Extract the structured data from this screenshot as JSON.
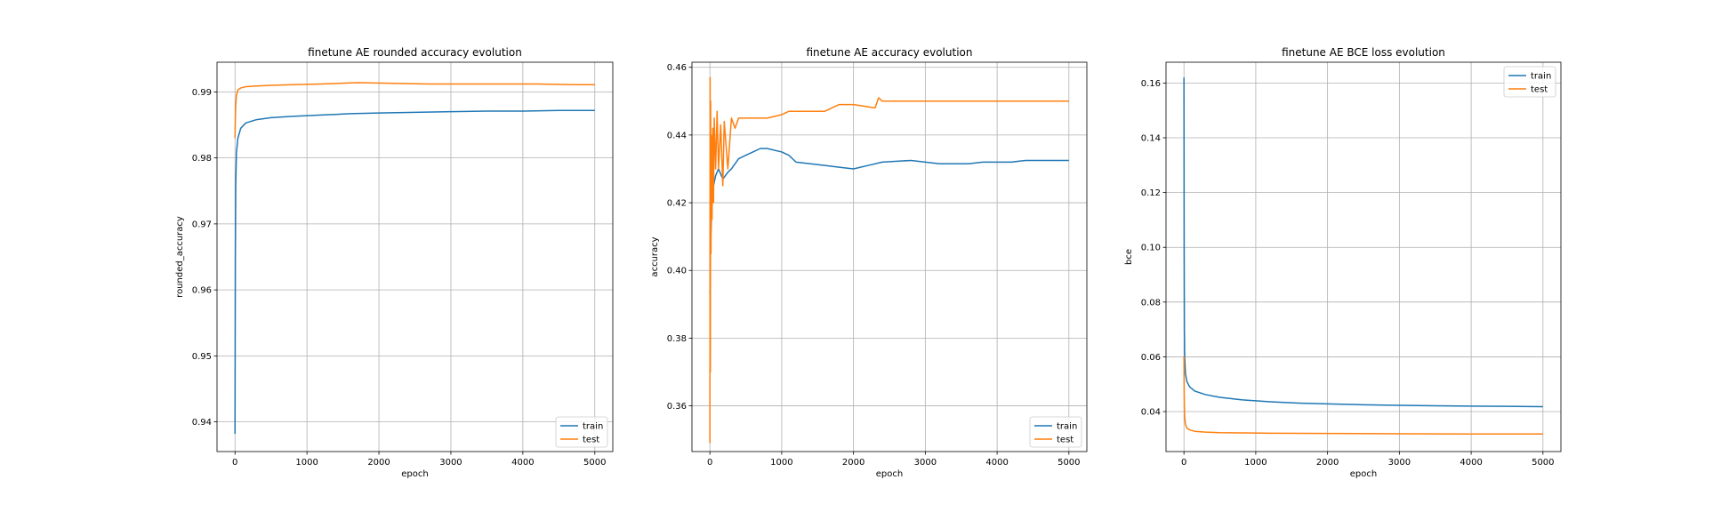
{
  "chart_data": [
    {
      "type": "line",
      "title": "finetune AE rounded accuracy evolution",
      "xlabel": "epoch",
      "ylabel": "rounded_accuracy",
      "xlim": [
        -250,
        5250
      ],
      "ylim": [
        0.9355,
        0.9945
      ],
      "xticks": [
        0,
        1000,
        2000,
        3000,
        4000,
        5000
      ],
      "yticks": [
        0.94,
        0.95,
        0.96,
        0.97,
        0.98,
        0.99
      ],
      "ytick_labels": [
        "0.94",
        "0.95",
        "0.96",
        "0.97",
        "0.98",
        "0.99"
      ],
      "grid": true,
      "legend": "lower-right",
      "series": [
        {
          "name": "train",
          "color": "#1f77b4",
          "x": [
            0,
            5,
            10,
            20,
            40,
            80,
            150,
            300,
            500,
            800,
            1200,
            1600,
            2000,
            2500,
            3000,
            3500,
            4000,
            4500,
            5000
          ],
          "y": [
            0.9382,
            0.965,
            0.976,
            0.9808,
            0.983,
            0.9845,
            0.9853,
            0.9858,
            0.9861,
            0.9863,
            0.9865,
            0.9867,
            0.9868,
            0.9869,
            0.987,
            0.9871,
            0.9871,
            0.9872,
            0.9872
          ]
        },
        {
          "name": "test",
          "color": "#ff7f0e",
          "x": [
            0,
            5,
            10,
            20,
            40,
            80,
            150,
            300,
            500,
            800,
            1200,
            1700,
            2200,
            2700,
            3200,
            3700,
            4200,
            4700,
            5000
          ],
          "y": [
            0.983,
            0.986,
            0.988,
            0.9895,
            0.9903,
            0.9906,
            0.9908,
            0.9909,
            0.991,
            0.9911,
            0.9912,
            0.9914,
            0.9913,
            0.9912,
            0.9912,
            0.9912,
            0.9912,
            0.9911,
            0.9911
          ]
        }
      ]
    },
    {
      "type": "line",
      "title": "finetune AE accuracy evolution",
      "xlabel": "epoch",
      "ylabel": "accuracy",
      "xlim": [
        -250,
        5250
      ],
      "ylim": [
        0.3465,
        0.4615
      ],
      "xticks": [
        0,
        1000,
        2000,
        3000,
        4000,
        5000
      ],
      "yticks": [
        0.36,
        0.38,
        0.4,
        0.42,
        0.44,
        0.46
      ],
      "ytick_labels": [
        "0.36",
        "0.38",
        "0.40",
        "0.42",
        "0.44",
        "0.46"
      ],
      "grid": true,
      "legend": "lower-right",
      "series": [
        {
          "name": "train",
          "color": "#1f77b4",
          "x": [
            0,
            5,
            10,
            20,
            30,
            50,
            80,
            120,
            180,
            250,
            300,
            400,
            500,
            600,
            700,
            800,
            1000,
            1100,
            1200,
            1400,
            1600,
            1800,
            2000,
            2200,
            2400,
            2800,
            3000,
            3200,
            3600,
            3800,
            4200,
            4400,
            4800,
            5000
          ],
          "y": [
            0.393,
            0.403,
            0.408,
            0.415,
            0.42,
            0.425,
            0.428,
            0.43,
            0.427,
            0.429,
            0.43,
            0.433,
            0.434,
            0.435,
            0.436,
            0.436,
            0.435,
            0.434,
            0.432,
            0.4315,
            0.431,
            0.4305,
            0.43,
            0.431,
            0.432,
            0.4325,
            0.432,
            0.4315,
            0.4315,
            0.432,
            0.432,
            0.4325,
            0.4325,
            0.4325
          ]
        },
        {
          "name": "test",
          "color": "#ff7f0e",
          "x": [
            0,
            3,
            6,
            10,
            15,
            20,
            30,
            40,
            50,
            60,
            80,
            100,
            120,
            150,
            180,
            200,
            250,
            300,
            350,
            400,
            600,
            800,
            1000,
            1100,
            1200,
            1600,
            1800,
            2000,
            2300,
            2350,
            2400,
            3000,
            4000,
            5000
          ],
          "y": [
            0.349,
            0.457,
            0.37,
            0.45,
            0.405,
            0.44,
            0.415,
            0.442,
            0.42,
            0.445,
            0.43,
            0.447,
            0.43,
            0.443,
            0.425,
            0.444,
            0.43,
            0.445,
            0.442,
            0.445,
            0.445,
            0.445,
            0.446,
            0.447,
            0.447,
            0.447,
            0.449,
            0.449,
            0.448,
            0.451,
            0.45,
            0.45,
            0.45,
            0.45
          ]
        }
      ]
    },
    {
      "type": "line",
      "title": "finetune AE BCE loss evolution",
      "xlabel": "epoch",
      "ylabel": "bce",
      "xlim": [
        -250,
        5250
      ],
      "ylim": [
        0.0254,
        0.1676
      ],
      "xticks": [
        0,
        1000,
        2000,
        3000,
        4000,
        5000
      ],
      "yticks": [
        0.04,
        0.06,
        0.08,
        0.1,
        0.12,
        0.14,
        0.16
      ],
      "ytick_labels": [
        "0.04",
        "0.06",
        "0.08",
        "0.10",
        "0.12",
        "0.14",
        "0.16"
      ],
      "grid": true,
      "legend": "upper-right",
      "series": [
        {
          "name": "train",
          "color": "#1f77b4",
          "x": [
            0,
            3,
            6,
            10,
            20,
            40,
            80,
            150,
            300,
            500,
            800,
            1200,
            1600,
            2000,
            2500,
            3000,
            3500,
            4000,
            4500,
            5000
          ],
          "y": [
            0.162,
            0.1,
            0.07,
            0.06,
            0.054,
            0.051,
            0.049,
            0.0475,
            0.0462,
            0.0452,
            0.0443,
            0.0436,
            0.0431,
            0.0428,
            0.0425,
            0.0423,
            0.0421,
            0.042,
            0.0419,
            0.0418
          ]
        },
        {
          "name": "test",
          "color": "#ff7f0e",
          "x": [
            0,
            3,
            6,
            10,
            20,
            40,
            80,
            150,
            300,
            500,
            800,
            1200,
            2000,
            3000,
            4000,
            5000
          ],
          "y": [
            0.06,
            0.048,
            0.041,
            0.038,
            0.0355,
            0.034,
            0.0333,
            0.0328,
            0.0325,
            0.0323,
            0.0322,
            0.0321,
            0.032,
            0.0319,
            0.0318,
            0.0318
          ]
        }
      ]
    }
  ]
}
